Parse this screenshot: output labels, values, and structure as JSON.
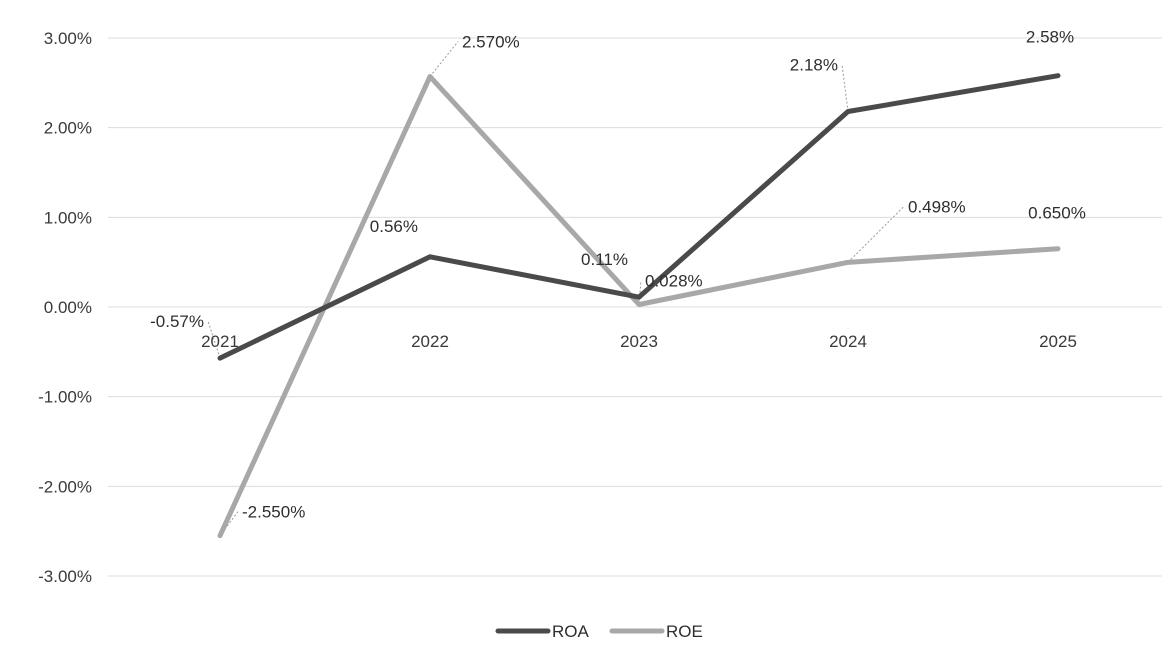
{
  "chart_data": {
    "type": "line",
    "title": "",
    "xlabel": "",
    "ylabel": "",
    "categories": [
      "2021",
      "2022",
      "2023",
      "2024",
      "2025"
    ],
    "ylim": [
      -0.03,
      0.03
    ],
    "yticks": [
      {
        "value": 0.03,
        "label": "3.00%"
      },
      {
        "value": 0.02,
        "label": "2.00%"
      },
      {
        "value": 0.01,
        "label": "1.00%"
      },
      {
        "value": 0.0,
        "label": "0.00%"
      },
      {
        "value": -0.01,
        "label": "-1.00%"
      },
      {
        "value": -0.02,
        "label": "-2.00%"
      },
      {
        "value": -0.03,
        "label": "-3.00%"
      }
    ],
    "grid": true,
    "legend": "bottom",
    "series": [
      {
        "name": "ROA",
        "color": "#4a4a4a",
        "values": [
          -0.0057,
          0.0056,
          0.0011,
          0.0218,
          0.0258
        ],
        "labels": [
          "-0.57%",
          "0.56%",
          "0.11%",
          "2.18%",
          "2.58%"
        ]
      },
      {
        "name": "ROE",
        "color": "#a8a8a8",
        "values": [
          -0.0255,
          0.0257,
          0.00028,
          0.00498,
          0.0065
        ],
        "labels": [
          "-2.550%",
          "2.570%",
          "0.028%",
          "0.498%",
          "0.650%"
        ]
      }
    ]
  }
}
